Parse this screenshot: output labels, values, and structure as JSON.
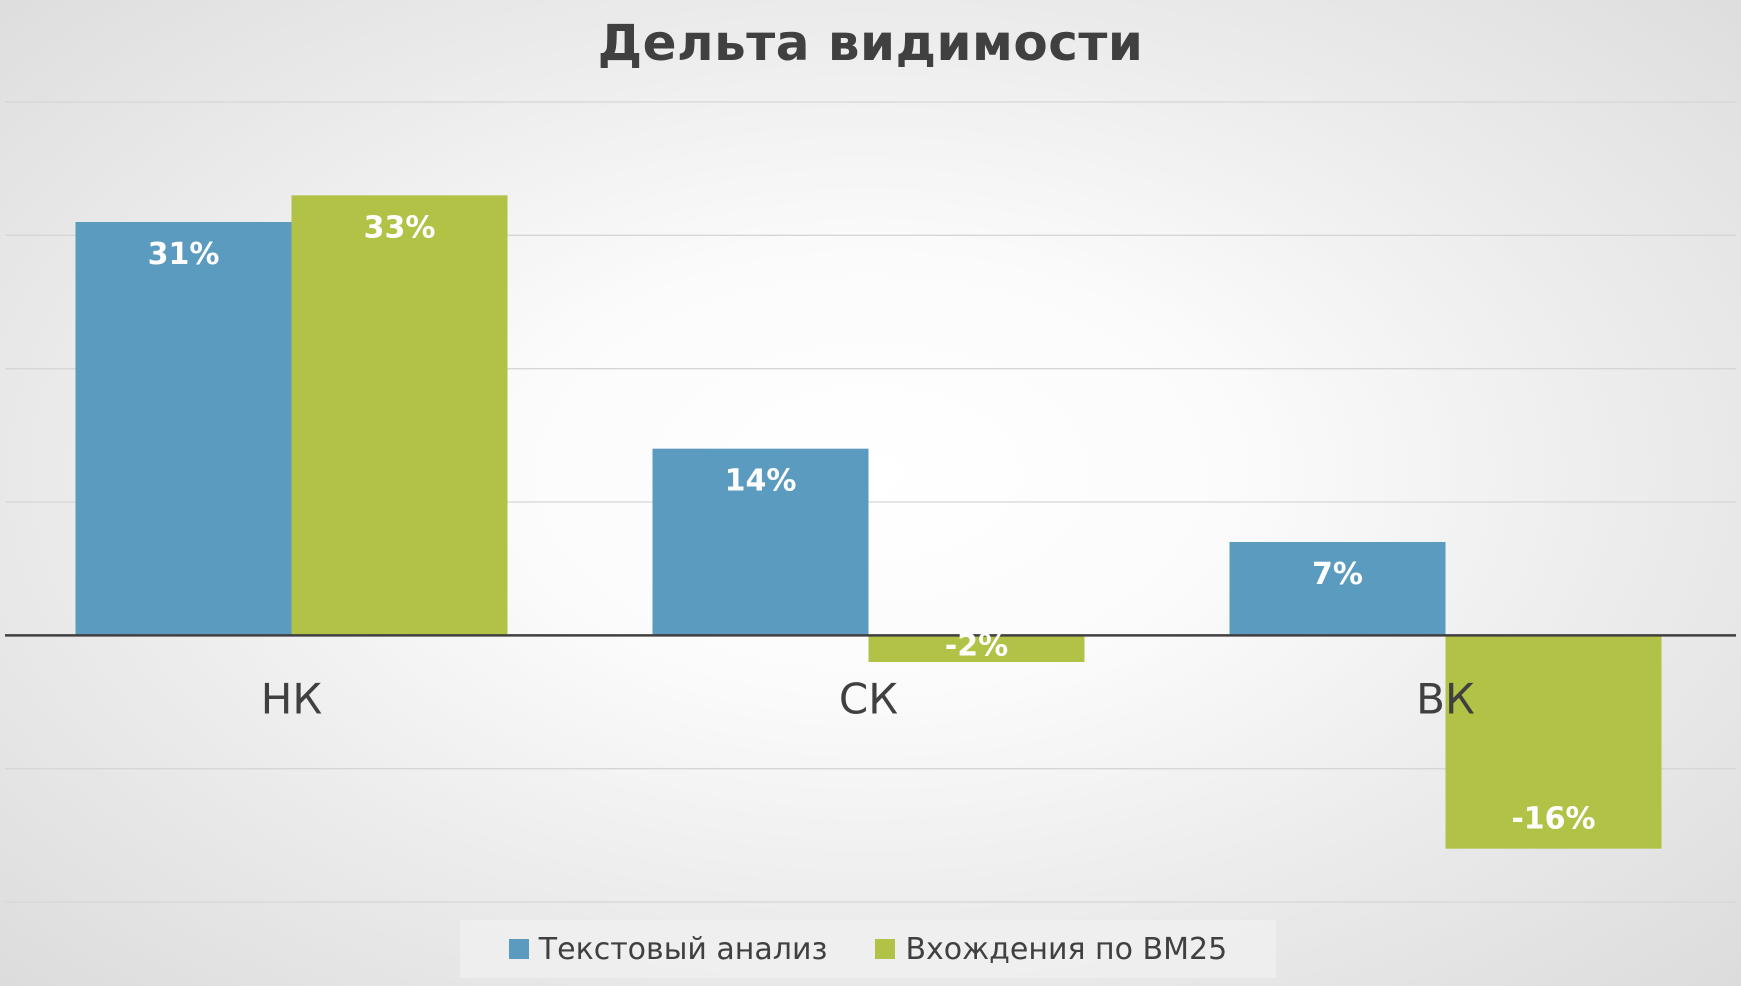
{
  "chart_data": {
    "type": "bar",
    "title": "Дельта видимости",
    "categories": [
      "НК",
      "СК",
      "ВК"
    ],
    "series": [
      {
        "name": "Текстовый анализ",
        "values": [
          31,
          14,
          7
        ],
        "labels": [
          "31%",
          "14%",
          "7%"
        ],
        "color": "#5b9bbf"
      },
      {
        "name": "Вхождения по BM25",
        "values": [
          33,
          -2,
          -16
        ],
        "labels": [
          "33%",
          "-2%",
          "-16%"
        ],
        "color": "#b1c247"
      }
    ],
    "ylim": [
      -20,
      40
    ],
    "gridlines": true,
    "legend_position": "bottom",
    "xlabel": "",
    "ylabel": ""
  }
}
